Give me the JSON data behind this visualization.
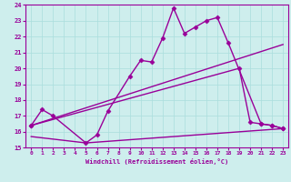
{
  "xlabel": "Windchill (Refroidissement éolien,°C)",
  "xlim": [
    -0.5,
    23.5
  ],
  "ylim": [
    15,
    24
  ],
  "yticks": [
    15,
    16,
    17,
    18,
    19,
    20,
    21,
    22,
    23,
    24
  ],
  "xticks": [
    0,
    1,
    2,
    3,
    4,
    5,
    6,
    7,
    8,
    9,
    10,
    11,
    12,
    13,
    14,
    15,
    16,
    17,
    18,
    19,
    20,
    21,
    22,
    23
  ],
  "background_color": "#ceeeed",
  "line_color": "#990099",
  "grid_color": "#aadddd",
  "series": [
    {
      "x": [
        0,
        1,
        2,
        5,
        6,
        7,
        9,
        10,
        11,
        12,
        13,
        14,
        15,
        16,
        17,
        18,
        21,
        22,
        23
      ],
      "y": [
        16.4,
        17.4,
        17.0,
        15.3,
        15.8,
        17.3,
        19.5,
        20.5,
        20.4,
        21.9,
        23.8,
        22.2,
        22.6,
        23.0,
        23.2,
        21.6,
        16.5,
        16.4,
        16.2
      ],
      "marker": "D",
      "markersize": 2.5,
      "linewidth": 1.0
    },
    {
      "x": [
        0,
        23
      ],
      "y": [
        16.4,
        21.5
      ],
      "marker": null,
      "markersize": 0,
      "linewidth": 1.0
    },
    {
      "x": [
        0,
        19,
        20,
        21,
        22,
        23
      ],
      "y": [
        16.4,
        20.0,
        16.6,
        16.5,
        16.4,
        16.2
      ],
      "marker": "D",
      "markersize": 2.5,
      "linewidth": 1.0
    },
    {
      "x": [
        0,
        5,
        23
      ],
      "y": [
        15.7,
        15.3,
        16.2
      ],
      "marker": null,
      "markersize": 0,
      "linewidth": 1.0
    }
  ]
}
